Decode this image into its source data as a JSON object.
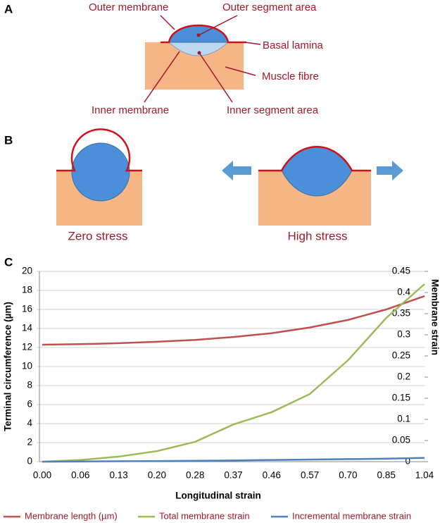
{
  "panels": {
    "a": "A",
    "b": "B",
    "c": "C"
  },
  "diagram_a": {
    "labels": [
      "Outer membrane",
      "Outer segment area",
      "Basal lamina",
      "Muscle fibre",
      "Inner membrane",
      "Inner segment area"
    ]
  },
  "diagram_b": {
    "captions": [
      "Zero stress",
      "High stress"
    ]
  },
  "chart_data": {
    "type": "line",
    "categories": [
      "0.00",
      "0.06",
      "0.13",
      "0.20",
      "0.28",
      "0.37",
      "0.46",
      "0.57",
      "0.70",
      "0.85",
      "1.04"
    ],
    "x_label": "Longitudinal strain",
    "y_label": "Terminal circumference (µm)",
    "y2_label": "Membrane strain",
    "ylim": [
      0,
      20
    ],
    "yticks": [
      0,
      2,
      4,
      6,
      8,
      10,
      12,
      14,
      16,
      18,
      20
    ],
    "y2lim": [
      0,
      0.45
    ],
    "y2ticks": [
      0,
      0.05,
      0.1,
      0.15,
      0.2,
      0.25,
      0.3,
      0.35,
      0.4,
      0.45
    ],
    "grid": true,
    "series": [
      {
        "name": "Membrane length (µm)",
        "color": "#c0504d",
        "values": [
          12.3,
          12.35,
          12.45,
          12.6,
          12.8,
          13.1,
          13.5,
          14.1,
          14.9,
          16.0,
          17.4
        ]
      },
      {
        "name": "Total membrane strain",
        "color": "#9bbb59",
        "axis": "y2",
        "values": [
          0,
          0.004,
          0.012,
          0.025,
          0.047,
          0.088,
          0.117,
          0.16,
          0.24,
          0.34,
          0.42
        ]
      },
      {
        "name": "Incremental membrane strain",
        "color": "#4f81bd",
        "axis": "y2",
        "values": [
          0,
          0.0005,
          0.001,
          0.0015,
          0.002,
          0.003,
          0.004,
          0.005,
          0.006,
          0.007,
          0.009
        ]
      }
    ]
  }
}
